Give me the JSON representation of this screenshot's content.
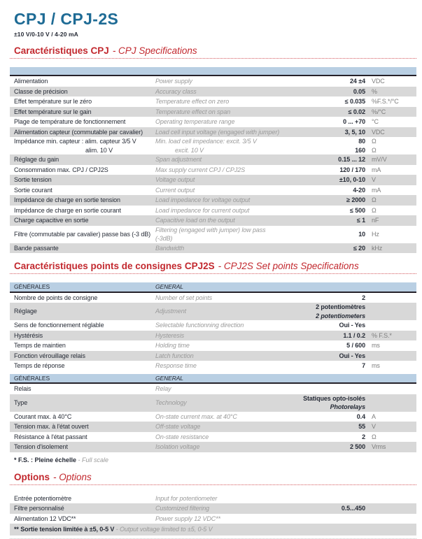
{
  "page": {
    "title": "CPJ / CPJ-2S",
    "subtitle": "±10 V/0-10 V / 4-20 mA"
  },
  "colors": {
    "accent_red": "#c2282e",
    "title_blue": "#1e6b95",
    "header_band_blue": "#b9cfe3",
    "shaded_row_gray": "#d8d8d8",
    "rule_dark": "#26222a",
    "english_italic_gray": "#9a9a9a"
  },
  "sections": [
    {
      "heading_bold": "Caractéristiques CPJ",
      "heading_italic": "- CPJ Specifications",
      "tables": [
        {
          "header": {
            "fr": "",
            "en": ""
          },
          "rows": [
            {
              "fr": "Alimentation",
              "en": "Power supply",
              "value": "24 ±4",
              "unit": "VDC"
            },
            {
              "fr": "Classe de précision",
              "en": "Accuracy class",
              "value": "0.05",
              "unit": "%"
            },
            {
              "fr": "Effet température sur le zéro",
              "en": "Temperature effect on zero",
              "value": "≤ 0.035",
              "unit": "%F.S.*/°C"
            },
            {
              "fr": "Effet température sur le gain",
              "en": "Temperature effect on span",
              "value": "≤ 0.02",
              "unit": "%/°C"
            },
            {
              "fr": "Plage de température de fonctionnement",
              "en": "Operating temperature range",
              "value": "0 ... +70",
              "unit": "°C"
            },
            {
              "fr": "Alimentation capteur (commutable par cavalier)",
              "en": "Load cell input voltage (engaged with jumper)",
              "value": "3, 5, 10",
              "unit": "VDC"
            },
            {
              "fr": "Impédance min. capteur : alim. capteur 3/5 V",
              "fr2": "alim. 10 V",
              "en": "Min. load cell impedance: excit. 3/5 V",
              "en2": "excit. 10 V",
              "value": "80",
              "value2": "160",
              "unit": "Ω",
              "unit2": "Ω"
            },
            {
              "fr": "Réglage du gain",
              "en": "Span adjustment",
              "value": "0.15 ... 12",
              "unit": "mV/V"
            },
            {
              "fr": "Consommation max. CPJ / CPJ2S",
              "en": "Max supply current CPJ / CPJ2S",
              "value": "120 / 170",
              "unit": "mA"
            },
            {
              "fr": "Sortie tension",
              "en": "Voltage output",
              "value": "±10, 0-10",
              "unit": "V"
            },
            {
              "fr": "Sortie courant",
              "en": "Current output",
              "value": "4-20",
              "unit": "mA"
            },
            {
              "fr": "Impédance de charge en sortie tension",
              "en": "Load impedance for voltage output",
              "value": "≥ 2000",
              "unit": "Ω"
            },
            {
              "fr": "Impédance de charge en sortie courant",
              "en": "Load impedance for current output",
              "value": "≤ 500",
              "unit": "Ω"
            },
            {
              "fr": "Charge capacitive en sortie",
              "en": "Capacitive load on the output",
              "value": "≤ 1",
              "unit": "nF"
            },
            {
              "fr": "Filtre (commutable par cavalier) passe bas (-3 dB)",
              "en": "Filtering (engaged with jumper) low pass (-3dB)",
              "value": "10",
              "unit": "Hz"
            },
            {
              "fr": "Bande passante",
              "en": "Bandwidth",
              "value": "≤ 20",
              "unit": "kHz"
            }
          ]
        }
      ]
    },
    {
      "heading_bold": "Caractéristiques points de consignes CPJ2S",
      "heading_italic": "- CPJ2S Set points Specifications",
      "tables": [
        {
          "header": {
            "fr": "GÉNÉRALES",
            "en": "GENERAL"
          },
          "rows": [
            {
              "fr": "Nombre de points de consigne",
              "en": "Number of set points",
              "value": "2",
              "unit": ""
            },
            {
              "fr": "Réglage",
              "en": "Adjustment",
              "value": "2 potentiomètres",
              "value_sub": "2 potentiometers",
              "unit": ""
            },
            {
              "fr": "Sens de fonctionnement réglable",
              "en": "Selectable functionning direction",
              "value": "Oui - Yes",
              "unit": ""
            },
            {
              "fr": "Hystérésis",
              "en": "Hysteresis",
              "value": "1.1 / 0.2",
              "unit": "% F.S.*"
            },
            {
              "fr": "Temps de maintien",
              "en": "Holding time",
              "value": "5 / 600",
              "unit": "ms"
            },
            {
              "fr": "Fonction vérouillage relais",
              "en": "Latch function",
              "value": "Oui - Yes",
              "unit": ""
            },
            {
              "fr": "Temps de réponse",
              "en": "Response time",
              "value": "7",
              "unit": "ms"
            }
          ]
        },
        {
          "header": {
            "fr": "GÉNÉRALES",
            "en": "GENERAL"
          },
          "rows": [
            {
              "fr": "Relais",
              "en": "Relay",
              "value": "",
              "unit": ""
            },
            {
              "fr": "Type",
              "en": "Technology",
              "value": "Statiques opto-isolés",
              "value_sub": "Photorelays",
              "unit": ""
            },
            {
              "fr": "Courant max. à 40°C",
              "en": "On-state current max. at 40°C",
              "value": "0.4",
              "unit": "A"
            },
            {
              "fr": "Tension max. à l'état ouvert",
              "en": "Off-state voltage",
              "value": "55",
              "unit": "V"
            },
            {
              "fr": "Résistance à l'état passant",
              "en": "On-state resistance",
              "value": "2",
              "unit": "Ω"
            },
            {
              "fr": "Tension d'isolement",
              "en": "Isolation voltage",
              "value": "2 500",
              "unit": "Vrms"
            }
          ]
        }
      ],
      "footnote": {
        "bold": "* F.S. : Pleine échelle",
        "italic": "- Full scale"
      }
    },
    {
      "heading_bold": "Options",
      "heading_italic": "- Options",
      "tables": [
        {
          "rows": [
            {
              "fr": "Entrée potentiomètre",
              "en": "Input for potentiometer",
              "value": "",
              "unit": ""
            },
            {
              "fr": "Filtre personnalisé",
              "en": "Customized filtering",
              "value": "0.5...450",
              "unit": ""
            },
            {
              "fr": "Alimentation 12 VDC**",
              "en": "Power supply 12 VDC**",
              "value": "",
              "unit": ""
            },
            {
              "footnote_bold": "** Sortie tension limitée à ±5, 0-5 V",
              "footnote_italic": "- Output voltage limited to ±5, 0-5 V"
            }
          ]
        }
      ],
      "bottom_divider": true
    }
  ]
}
